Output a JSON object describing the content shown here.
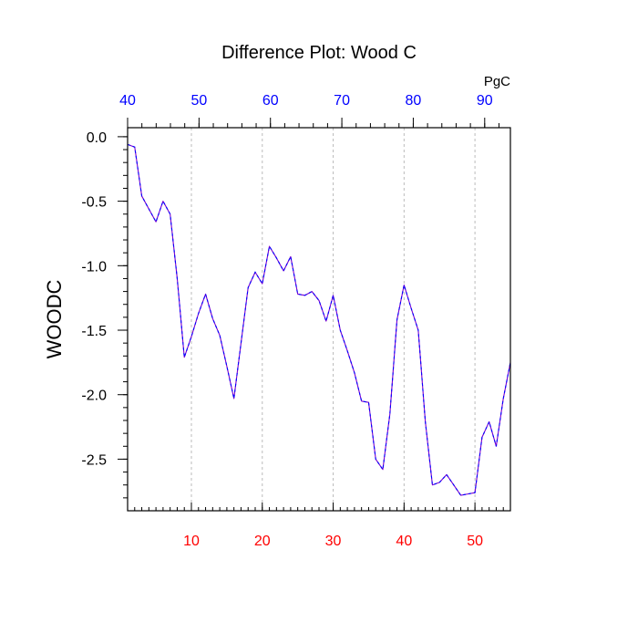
{
  "chart_data": {
    "type": "line",
    "title": "Difference Plot: Wood C",
    "ylabel": "WOODC",
    "top_axis_unit": "PgC",
    "x": [
      1,
      2,
      3,
      4,
      5,
      6,
      7,
      8,
      9,
      10,
      11,
      12,
      13,
      14,
      15,
      16,
      17,
      18,
      19,
      20,
      21,
      22,
      23,
      24,
      25,
      26,
      27,
      28,
      29,
      30,
      31,
      32,
      33,
      34,
      35,
      36,
      37,
      38,
      39,
      40,
      41,
      42,
      43,
      44,
      45,
      46,
      47,
      48,
      49,
      50,
      51,
      52,
      53,
      54,
      55
    ],
    "series": [
      {
        "values": [
          -0.06,
          -0.08,
          -0.46,
          -0.56,
          -0.66,
          -0.5,
          -0.6,
          -1.1,
          -1.71,
          -1.55,
          -1.37,
          -1.22,
          -1.41,
          -1.54,
          -1.78,
          -2.03,
          -1.6,
          -1.17,
          -1.05,
          -1.14,
          -0.85,
          -0.94,
          -1.04,
          -0.93,
          -1.22,
          -1.23,
          -1.2,
          -1.27,
          -1.43,
          -1.23,
          -1.5,
          -1.66,
          -1.83,
          -2.05,
          -2.06,
          -2.5,
          -2.58,
          -2.15,
          -1.42,
          -1.15,
          -1.33,
          -1.5,
          -2.21,
          -2.7,
          -2.68,
          -2.62,
          -2.7,
          -2.78,
          -2.77,
          -2.76,
          -2.33,
          -2.21,
          -2.4,
          -2.03,
          -1.75
        ],
        "color": "#7a00cc",
        "dash_color": "#0000ff"
      }
    ],
    "xlim": [
      1,
      55
    ],
    "ylim": [
      -2.9,
      0.07
    ],
    "bottom_axis": {
      "ticks": [
        10,
        20,
        30,
        40,
        50
      ],
      "labels": [
        "10",
        "20",
        "30",
        "40",
        "50"
      ],
      "color": "#ff0000",
      "minor_step": 1
    },
    "top_axis": {
      "ticks": [
        40,
        50,
        60,
        70,
        80,
        90
      ],
      "labels": [
        "40",
        "50",
        "60",
        "70",
        "80",
        "90"
      ],
      "range": [
        40,
        93.6
      ],
      "color": "#0000ff",
      "minor_step": 2
    },
    "left_axis": {
      "ticks": [
        0.0,
        -0.5,
        -1.0,
        -1.5,
        -2.0,
        -2.5
      ],
      "labels": [
        "0.0",
        "-0.5",
        "-1.0",
        "-1.5",
        "-2.0",
        "-2.5"
      ],
      "minor_step": 0.1
    },
    "vertical_grid": true,
    "grid_color": "#bbbbbb"
  }
}
